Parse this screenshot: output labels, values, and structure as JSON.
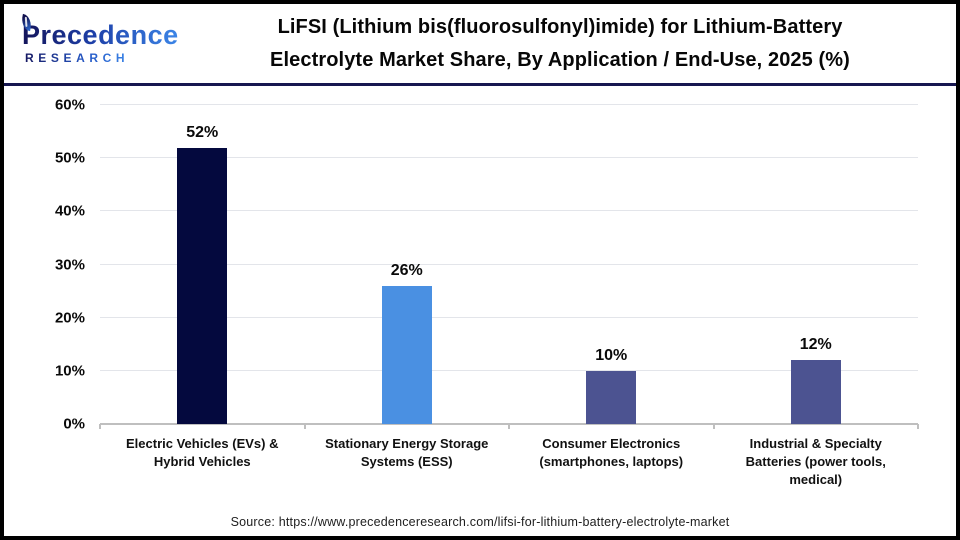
{
  "header": {
    "brand": {
      "name": "Precedence",
      "subname": "RESEARCH"
    },
    "title_line1": "LiFSI (Lithium bis(fluorosulfonyl)imide) for Lithium-Battery",
    "title_line2": "Electrolyte Market Share, By Application / End-Use, 2025 (%)"
  },
  "chart_data": {
    "type": "bar",
    "title": "LiFSI (Lithium bis(fluorosulfonyl)imide) for Lithium-Battery Electrolyte Market Share, By Application / End-Use, 2025 (%)",
    "categories": [
      "Electric Vehicles (EVs) & Hybrid Vehicles",
      "Stationary Energy Storage Systems (ESS)",
      "Consumer Electronics (smartphones, laptops)",
      "Industrial & Specialty Batteries (power tools, medical)"
    ],
    "values": [
      52,
      26,
      10,
      12
    ],
    "value_labels": [
      "52%",
      "26%",
      "10%",
      "12%"
    ],
    "bar_colors": [
      "#04093e",
      "#4a90e2",
      "#4c5391",
      "#4c5391"
    ],
    "xlabel": "",
    "ylabel": "",
    "ylim": [
      0,
      60
    ],
    "ytick_step": 10,
    "ytick_suffix": "%",
    "grid": true,
    "legend": false
  },
  "colors": {
    "bar_dark_navy": "#04093e",
    "bar_bright_blue": "#4a90e2",
    "bar_slate_blue": "#4c5391",
    "header_divider_navy": "#171750",
    "gridline": "#e3e5ea",
    "axis_line": "#bfbfbf",
    "outer_border": "#000000"
  },
  "footer": {
    "source": "Source: https://www.precedenceresearch.com/lifsi-for-lithium-battery-electrolyte-market"
  }
}
